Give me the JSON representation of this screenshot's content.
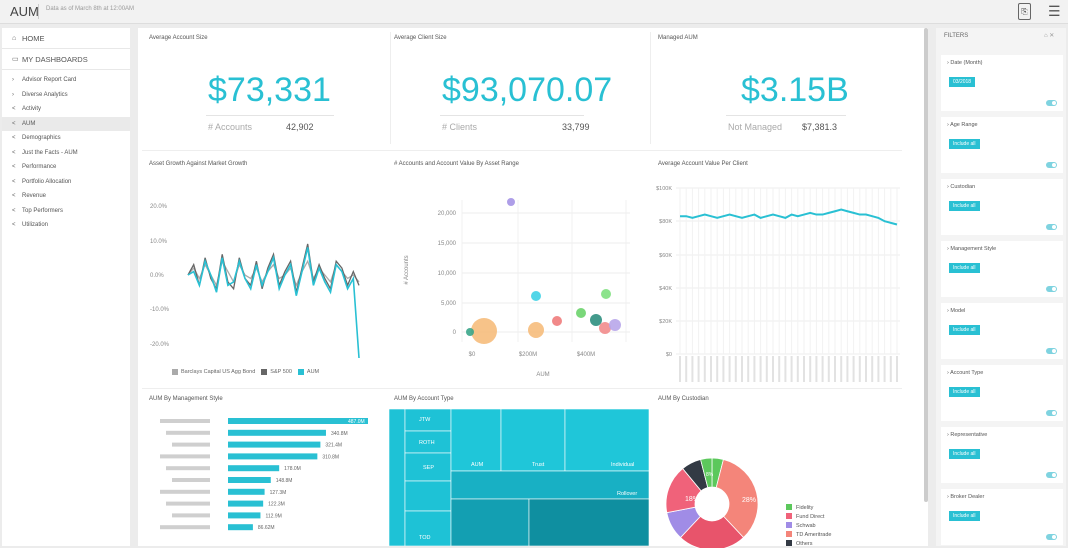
{
  "topbar": {
    "title": "AUM",
    "subtitle": "Data as of March 8th at 12:00AM"
  },
  "sidebar": {
    "home": "HOME",
    "dashboards": "MY DASHBOARDS",
    "items": [
      {
        "label": "Advisor Report Card",
        "icon": "chevron-right-icon"
      },
      {
        "label": "Diverse Analytics",
        "icon": "chevron-right-icon"
      },
      {
        "label": "Activity",
        "icon": "share-icon"
      },
      {
        "label": "AUM",
        "icon": "share-icon",
        "active": true
      },
      {
        "label": "Demographics",
        "icon": "share-icon"
      },
      {
        "label": "Just the Facts - AUM",
        "icon": "share-icon"
      },
      {
        "label": "Performance",
        "icon": "share-icon"
      },
      {
        "label": "Portfolio Allocation",
        "icon": "share-icon"
      },
      {
        "label": "Revenue",
        "icon": "share-icon"
      },
      {
        "label": "Top Performers",
        "icon": "share-icon"
      },
      {
        "label": "Utilization",
        "icon": "share-icon"
      }
    ]
  },
  "kpis": [
    {
      "title": "Average Account Size",
      "value": "$73,331",
      "label": "# Accounts",
      "sub": "42,902"
    },
    {
      "title": "Average Client Size",
      "value": "$93,070.07",
      "label": "# Clients",
      "sub": "33,799"
    },
    {
      "title": "Managed AUM",
      "value": "$3.15B",
      "label": "Not Managed",
      "sub": "$7,381.3"
    }
  ],
  "charts": {
    "growth": {
      "title": "Asset Growth Against Market Growth",
      "yticks": [
        "20.0%",
        "10.0%",
        "0.0%",
        "-10.0%",
        "-20.0%"
      ],
      "legend": [
        "Barclays Capital US Agg Bond",
        "S&P 500",
        "AUM"
      ],
      "colors": [
        "#aaaaaa",
        "#666666",
        "#29c0d3"
      ]
    },
    "bubble": {
      "title": "# Accounts and Account Value By Asset Range",
      "ylabel": "# Accounts",
      "xlabel": "AUM",
      "yticks": [
        "20,000",
        "15,000",
        "10,000",
        "5,000",
        "0"
      ],
      "xticks": [
        "$0",
        "$200M",
        "$400M"
      ]
    },
    "avgval": {
      "title": "Average Account Value Per Client",
      "yticks": [
        "$100K",
        "$80K",
        "$60K",
        "$40K",
        "$20K",
        "$0"
      ]
    },
    "mgmt": {
      "title": "AUM By Management Style",
      "labels": [
        "487.0M",
        "340.8M",
        "321.4M",
        "310.8M",
        "178.0M",
        "148.8M",
        "127.3M",
        "122.3M",
        "112.9M",
        "86.62M"
      ]
    },
    "accttype": {
      "title": "AUM By Account Type",
      "labels": [
        "JTW",
        "ROTH",
        "SEP",
        "AUM",
        "Trust",
        "Individual",
        "Rollover",
        "TOD"
      ]
    },
    "custodian": {
      "title": "AUM By Custodian",
      "slice_labels": [
        "18%",
        "8%",
        "28%"
      ],
      "legend": [
        "Fidelity",
        "Fund Direct",
        "Schwab",
        "TD Ameritrade",
        "Others"
      ],
      "colors": [
        "#5cc85c",
        "#f0627a",
        "#a08ce6",
        "#f4857a",
        "#333a44"
      ]
    }
  },
  "filters": {
    "title": "FILTERS",
    "cards": [
      {
        "label": "Date (Month)",
        "button": "03/2018"
      },
      {
        "label": "Age Range",
        "button": "Include all"
      },
      {
        "label": "Custodian",
        "button": "Include all"
      },
      {
        "label": "Management Style",
        "button": "Include all"
      },
      {
        "label": "Model",
        "button": "Include all"
      },
      {
        "label": "Account Type",
        "button": "Include all"
      },
      {
        "label": "Representative",
        "button": "Include all"
      },
      {
        "label": "Broker Dealer",
        "button": "Include all"
      }
    ]
  }
}
